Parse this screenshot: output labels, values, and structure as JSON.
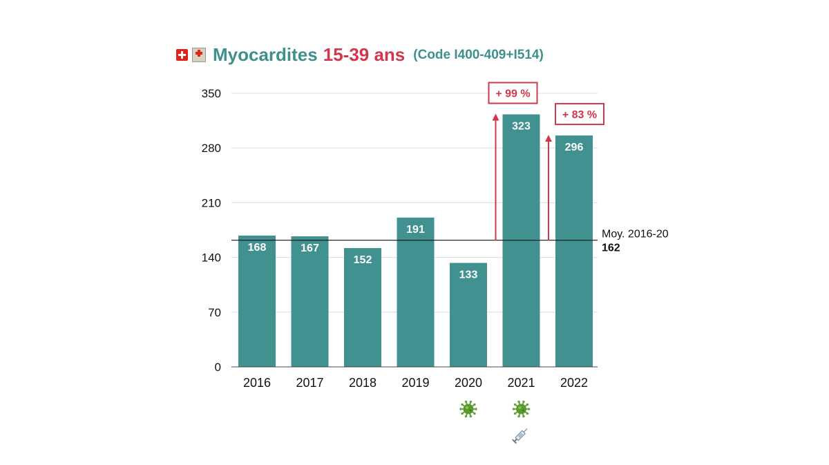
{
  "title": {
    "main": "Myocardites",
    "age": "15-39 ans",
    "code": "(Code I400-409+I514)"
  },
  "icons": {
    "flag": "swiss-flag-icon",
    "hospital": "hospital-icon",
    "virus": "virus-icon",
    "syringe": "syringe-icon"
  },
  "colors": {
    "bar": "#419190",
    "bar_label": "#ffffff",
    "accent": "#d2364b",
    "title": "#3f8f8d",
    "grid": "#dcdcdc",
    "axis": "#444444"
  },
  "chart_data": {
    "type": "bar",
    "title": "Myocardites 15-39 ans (Code I400-409+I514)",
    "xlabel": "",
    "ylabel": "",
    "categories": [
      "2016",
      "2017",
      "2018",
      "2019",
      "2020",
      "2021",
      "2022"
    ],
    "values": [
      168,
      167,
      152,
      191,
      133,
      323,
      296
    ],
    "value_labels": [
      "168",
      "167",
      "152",
      "191",
      "133",
      "323",
      "296"
    ],
    "ylim": [
      0,
      350
    ],
    "yticks": [
      0,
      70,
      140,
      210,
      280,
      350
    ],
    "ytick_labels": [
      "0",
      "70",
      "140",
      "210",
      "280",
      "350"
    ],
    "grid": true,
    "reference_line": {
      "value": 162,
      "label": "Moy. 2016-20",
      "value_label": "162"
    },
    "annotations": [
      {
        "category": "2021",
        "text": "+ 99 %"
      },
      {
        "category": "2022",
        "text": "+ 83 %"
      }
    ],
    "markers": [
      {
        "category": "2020",
        "icons": [
          "virus-icon"
        ]
      },
      {
        "category": "2021",
        "icons": [
          "virus-icon",
          "syringe-icon"
        ]
      }
    ]
  }
}
